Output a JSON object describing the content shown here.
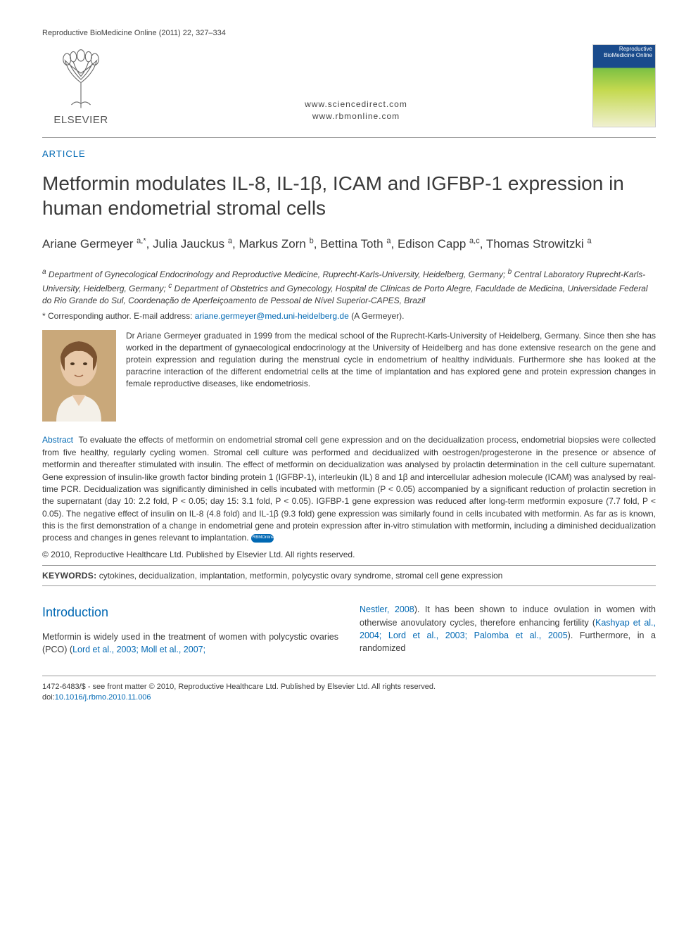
{
  "header": {
    "journal_ref": "Reproductive BioMedicine Online (2011) 22, 327–334",
    "links_line1": "www.sciencedirect.com",
    "links_line2": "www.rbmonline.com",
    "elsevier_label": "ELSEVIER",
    "cover_title": "Reproductive BioMedicine Online"
  },
  "article_tag": "ARTICLE",
  "title": "Metformin modulates IL-8, IL-1β, ICAM and IGFBP-1 expression in human endometrial stromal cells",
  "authors_html": "Ariane Germeyer <sup>a,*</sup>, Julia Jauckus <sup>a</sup>, Markus Zorn <sup>b</sup>, Bettina Toth <sup>a</sup>, Edison Capp <sup>a,c</sup>, Thomas Strowitzki <sup>a</sup>",
  "affiliations": "<sup>a</sup> Department of Gynecological Endocrinology and Reproductive Medicine, Ruprecht-Karls-University, Heidelberg, Germany; <sup>b</sup> Central Laboratory Ruprecht-Karls-University, Heidelberg, Germany; <sup>c</sup> Department of Obstetrics and Gynecology, Hospital de Clínicas de Porto Alegre, Faculdade de Medicina, Universidade Federal do Rio Grande do Sul, Coordenação de Aperfeiçoamento de Pessoal de Nível Superior-CAPES, Brazil",
  "corresponding_prefix": "* Corresponding author.   E-mail address: ",
  "corresponding_email": "ariane.germeyer@med.uni-heidelberg.de",
  "corresponding_suffix": " (A Germeyer).",
  "bio": "Dr Ariane Germeyer graduated in 1999 from the medical school of the Ruprecht-Karls-University of Heidelberg, Germany. Since then she has worked in the department of gynaecological endocrinology at the University of Heidelberg and has done extensive research on the gene and protein expression and regulation during the menstrual cycle in endometrium of healthy individuals. Furthermore she has looked at the paracrine interaction of the different endometrial cells at the time of implantation and has explored gene and protein expression changes in female reproductive diseases, like endometriosis.",
  "abstract_label": "Abstract",
  "abstract": "To evaluate the effects of metformin on endometrial stromal cell gene expression and on the decidualization process, endometrial biopsies were collected from five healthy, regularly cycling women. Stromal cell culture was performed and decidualized with oestrogen/progesterone in the presence or absence of metformin and thereafter stimulated with insulin. The effect of metformin on decidualization was analysed by prolactin determination in the cell culture supernatant. Gene expression of insulin-like growth factor binding protein 1 (IGFBP-1), interleukin (IL) 8 and 1β and intercellular adhesion molecule (ICAM) was analysed by real-time PCR. Decidualization was significantly diminished in cells incubated with metformin (P < 0.05) accompanied by a significant reduction of prolactin secretion in the supernatant (day 10: 2.2 fold, P < 0.05; day 15: 3.1 fold, P < 0.05). IGFBP-1 gene expression was reduced after long-term metformin exposure (7.7 fold, P < 0.05). The negative effect of insulin on IL-8 (4.8 fold) and IL-1β (9.3 fold) gene expression was similarly found in cells incubated with metformin. As far as is known, this is the first demonstration of a change in endometrial gene and protein expression after in-vitro stimulation with metformin, including a diminished decidualization process and changes in genes relevant to implantation.",
  "copyright": "© 2010, Reproductive Healthcare Ltd. Published by Elsevier Ltd. All rights reserved.",
  "keywords_label": "KEYWORDS:",
  "keywords": "cytokines, decidualization, implantation, metformin, polycystic ovary syndrome, stromal cell gene expression",
  "intro_heading": "Introduction",
  "intro_col1_plain": "Metformin is widely used in the treatment of women with polycystic ovaries (PCO) (",
  "intro_col1_cite": "Lord et al., 2003; Moll et al., 2007;",
  "intro_col2_cite1": "Nestler, 2008",
  "intro_col2_mid1": "). It has been shown to induce ovulation in women with otherwise anovulatory cycles, therefore enhancing fertility (",
  "intro_col2_cite2": "Kashyap et al., 2004; Lord et al., 2003; Palomba et al., 2005",
  "intro_col2_mid2": "). Furthermore, in a randomized",
  "footer": {
    "line1": "1472-6483/$ - see front matter © 2010, Reproductive Healthcare Ltd. Published by Elsevier Ltd. All rights reserved.",
    "doi_prefix": "doi:",
    "doi": "10.1016/j.rbmo.2010.11.006"
  },
  "colors": {
    "link": "#0068b3",
    "text": "#3a3a3a",
    "rule": "#999999"
  }
}
